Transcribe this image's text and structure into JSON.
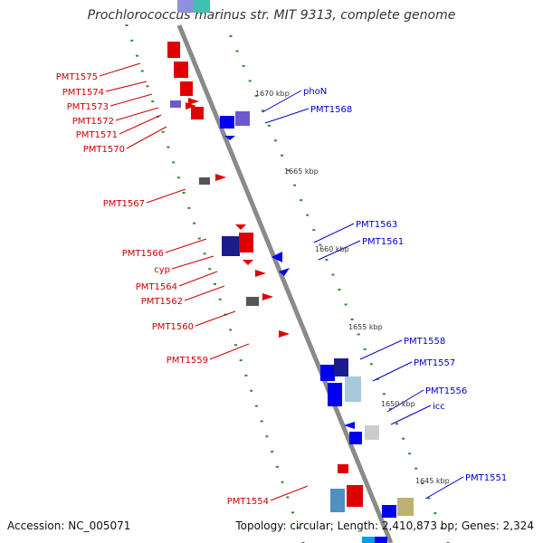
{
  "title": "Prochlorococcus marinus str. MIT 9313, complete genome",
  "footer": {
    "accession": "Accession: NC_005071",
    "topology": "Topology: circular; Length: 2,410,873 bp; Genes: 2,324"
  },
  "colors": {
    "backbone": "#8a8a8a",
    "ruler_tick": "#2e8b2e",
    "left_label": "#cc0000",
    "right_label": "#0000cc",
    "kbp_label": "#333333"
  },
  "kbp_marks": [
    "1670 kbp",
    "1665 kbp",
    "1660 kbp",
    "1655 kbp",
    "1650 kbp",
    "1645 kbp"
  ],
  "left_genes": [
    "PMT1575",
    "PMT1574",
    "PMT1573",
    "PMT1572",
    "PMT1571",
    "PMT1570",
    "PMT1567",
    "PMT1566",
    "cyp",
    "PMT1564",
    "PMT1562",
    "PMT1560",
    "PMT1559",
    "PMT1554"
  ],
  "right_genes": [
    "phoN",
    "PMT1568",
    "PMT1563",
    "PMT1561",
    "PMT1558",
    "PMT1557",
    "PMT1556",
    "icc",
    "PMT1551"
  ]
}
